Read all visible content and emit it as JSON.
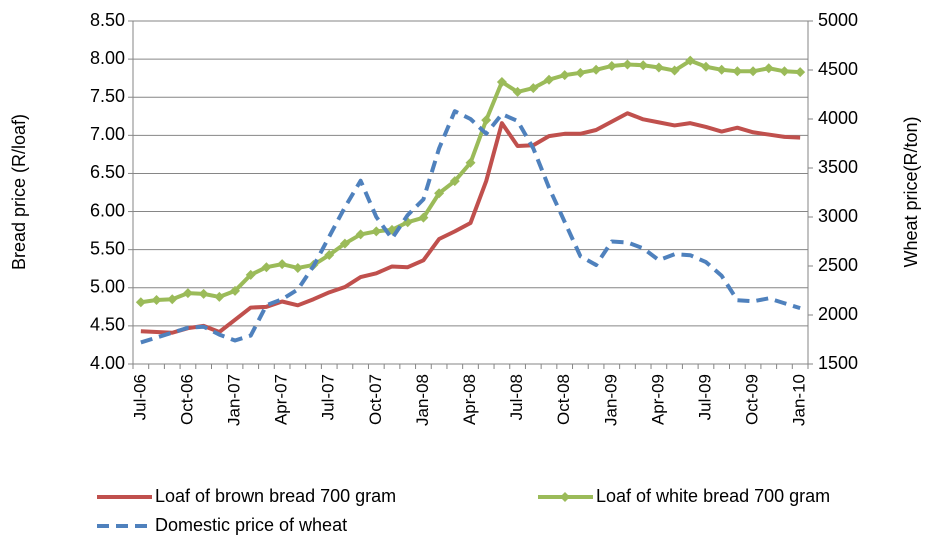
{
  "chart_data": {
    "type": "line",
    "y_label": "Bread price (R/loaf)",
    "y2_label": "Wheat price(R/ton)",
    "categories": [
      "Jul-06",
      null,
      null,
      "Oct-06",
      null,
      null,
      "Jan-07",
      null,
      null,
      "Apr-07",
      null,
      null,
      "Jul-07",
      null,
      null,
      "Oct-07",
      null,
      null,
      "Jan-08",
      null,
      null,
      "Apr-08",
      null,
      null,
      "Jul-08",
      null,
      null,
      "Oct-08",
      null,
      null,
      "Jan-09",
      null,
      null,
      "Apr-09",
      null,
      null,
      "Jul-09",
      null,
      null,
      "Oct-09",
      null,
      null,
      "Jan-10"
    ],
    "series": [
      {
        "name": "Loaf of brown bread 700 gram",
        "color": "#c0504d",
        "axis": "y",
        "values": [
          4.43,
          4.42,
          4.41,
          4.47,
          4.5,
          4.42,
          4.58,
          4.74,
          4.75,
          4.82,
          4.77,
          4.85,
          4.94,
          5.01,
          5.14,
          5.19,
          5.28,
          5.27,
          5.36,
          5.64,
          5.74,
          5.85,
          6.4,
          7.16,
          6.86,
          6.87,
          6.99,
          7.02,
          7.02,
          7.07,
          7.18,
          7.29,
          7.21,
          7.17,
          7.13,
          7.16,
          7.11,
          7.05,
          7.1,
          7.04,
          7.01,
          6.98,
          6.97
        ]
      },
      {
        "name": "Loaf of white bread 700 gram",
        "color": "#9bbb59",
        "axis": "y",
        "marker": "diamond",
        "values": [
          4.81,
          4.84,
          4.85,
          4.93,
          4.92,
          4.88,
          4.96,
          5.17,
          5.27,
          5.31,
          5.26,
          5.3,
          5.43,
          5.58,
          5.7,
          5.74,
          5.76,
          5.86,
          5.92,
          6.24,
          6.4,
          6.64,
          7.2,
          7.7,
          7.57,
          7.62,
          7.73,
          7.79,
          7.82,
          7.86,
          7.91,
          7.93,
          7.92,
          7.89,
          7.85,
          7.98,
          7.9,
          7.86,
          7.84,
          7.84,
          7.88,
          7.84,
          7.83
        ]
      },
      {
        "name": "Domestic price of wheat",
        "color": "#4f81bd",
        "axis": "y2",
        "line_style": "dashed",
        "values": [
          1720,
          1770,
          1820,
          1870,
          1880,
          1800,
          1740,
          1790,
          2100,
          2160,
          2260,
          2500,
          2800,
          3100,
          3370,
          3000,
          2780,
          3020,
          3180,
          3700,
          4080,
          4000,
          3850,
          4050,
          3980,
          3700,
          3300,
          2950,
          2600,
          2510,
          2750,
          2740,
          2680,
          2560,
          2620,
          2610,
          2540,
          2400,
          2150,
          2140,
          2170,
          2120,
          2070
        ]
      }
    ],
    "ylim": [
      4.0,
      8.5
    ],
    "yticks": [
      {
        "value": 4,
        "label": "4.00"
      },
      {
        "value": 4.5,
        "label": "4.50"
      },
      {
        "value": 5,
        "label": "5.00"
      },
      {
        "value": 5.5,
        "label": "5.50"
      },
      {
        "value": 6,
        "label": "6.00"
      },
      {
        "value": 6.5,
        "label": "6.50"
      },
      {
        "value": 7,
        "label": "7.00"
      },
      {
        "value": 7.5,
        "label": "7.50"
      },
      {
        "value": 8,
        "label": "8.00"
      },
      {
        "value": 8.5,
        "label": "8.50"
      }
    ],
    "y2lim": [
      1500,
      5000
    ],
    "y2ticks": [
      1500,
      2000,
      2500,
      3000,
      3500,
      4000,
      4500,
      5000
    ],
    "grid": true,
    "legend": "bottom"
  }
}
